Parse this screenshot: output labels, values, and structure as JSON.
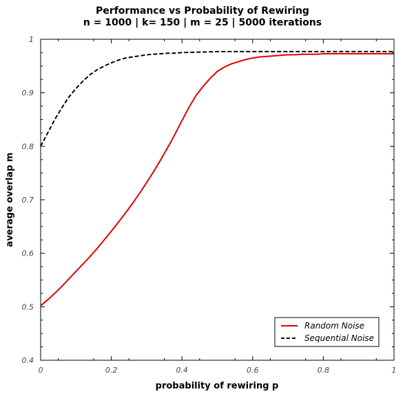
{
  "chart_data": {
    "type": "line",
    "title": "Performance vs Probability of Rewiring",
    "subtitle": "n = 1000 | k= 150 | m = 25 | 5000 iterations",
    "xlabel": "probability of rewiring p",
    "ylabel": "average overlap m",
    "xlim": [
      0,
      1
    ],
    "ylim": [
      0.4,
      1
    ],
    "xticks": [
      {
        "value": 0,
        "label": "0"
      },
      {
        "value": 0.2,
        "label": "0.2"
      },
      {
        "value": 0.4,
        "label": "0.4"
      },
      {
        "value": 0.6,
        "label": "0.6"
      },
      {
        "value": 0.8,
        "label": "0.8"
      },
      {
        "value": 1,
        "label": "1"
      }
    ],
    "yticks": [
      {
        "value": 0.4,
        "label": "0.4"
      },
      {
        "value": 0.5,
        "label": "0.5"
      },
      {
        "value": 0.6,
        "label": "0.6"
      },
      {
        "value": 0.7,
        "label": "0.7"
      },
      {
        "value": 0.8,
        "label": "0.8"
      },
      {
        "value": 0.9,
        "label": "0.9"
      },
      {
        "value": 1,
        "label": "1"
      }
    ],
    "grid": false,
    "legend_position": "bottom-right",
    "series": [
      {
        "name": "Random Noise",
        "color": "#dd0000",
        "style": "solid",
        "x": [
          0,
          0.02,
          0.04,
          0.06,
          0.08,
          0.1,
          0.12,
          0.14,
          0.16,
          0.18,
          0.2,
          0.22,
          0.24,
          0.26,
          0.28,
          0.3,
          0.32,
          0.34,
          0.36,
          0.38,
          0.4,
          0.42,
          0.44,
          0.46,
          0.48,
          0.5,
          0.52,
          0.54,
          0.56,
          0.58,
          0.6,
          0.62,
          0.64,
          0.66,
          0.68,
          0.7,
          0.72,
          0.74,
          0.76,
          0.78,
          0.8,
          0.85,
          0.9,
          0.95,
          1.0
        ],
        "y": [
          0.502,
          0.513,
          0.525,
          0.538,
          0.552,
          0.566,
          0.58,
          0.594,
          0.609,
          0.625,
          0.641,
          0.658,
          0.675,
          0.693,
          0.712,
          0.732,
          0.753,
          0.775,
          0.798,
          0.822,
          0.848,
          0.873,
          0.895,
          0.912,
          0.927,
          0.94,
          0.948,
          0.954,
          0.958,
          0.962,
          0.965,
          0.967,
          0.968,
          0.969,
          0.97,
          0.971,
          0.971,
          0.972,
          0.972,
          0.972,
          0.973,
          0.973,
          0.973,
          0.973,
          0.973
        ]
      },
      {
        "name": "Sequential Noise",
        "color": "#000000",
        "style": "dashed",
        "x": [
          0,
          0.02,
          0.04,
          0.06,
          0.08,
          0.1,
          0.12,
          0.14,
          0.16,
          0.18,
          0.2,
          0.22,
          0.24,
          0.26,
          0.28,
          0.3,
          0.32,
          0.34,
          0.36,
          0.38,
          0.4,
          0.45,
          0.5,
          0.55,
          0.6,
          0.65,
          0.7,
          0.75,
          0.8,
          0.85,
          0.9,
          0.95,
          1.0
        ],
        "y": [
          0.8,
          0.825,
          0.85,
          0.872,
          0.892,
          0.908,
          0.922,
          0.934,
          0.943,
          0.95,
          0.956,
          0.961,
          0.965,
          0.967,
          0.969,
          0.971,
          0.972,
          0.973,
          0.974,
          0.974,
          0.975,
          0.976,
          0.977,
          0.977,
          0.977,
          0.977,
          0.977,
          0.977,
          0.977,
          0.977,
          0.977,
          0.977,
          0.977
        ]
      }
    ]
  }
}
